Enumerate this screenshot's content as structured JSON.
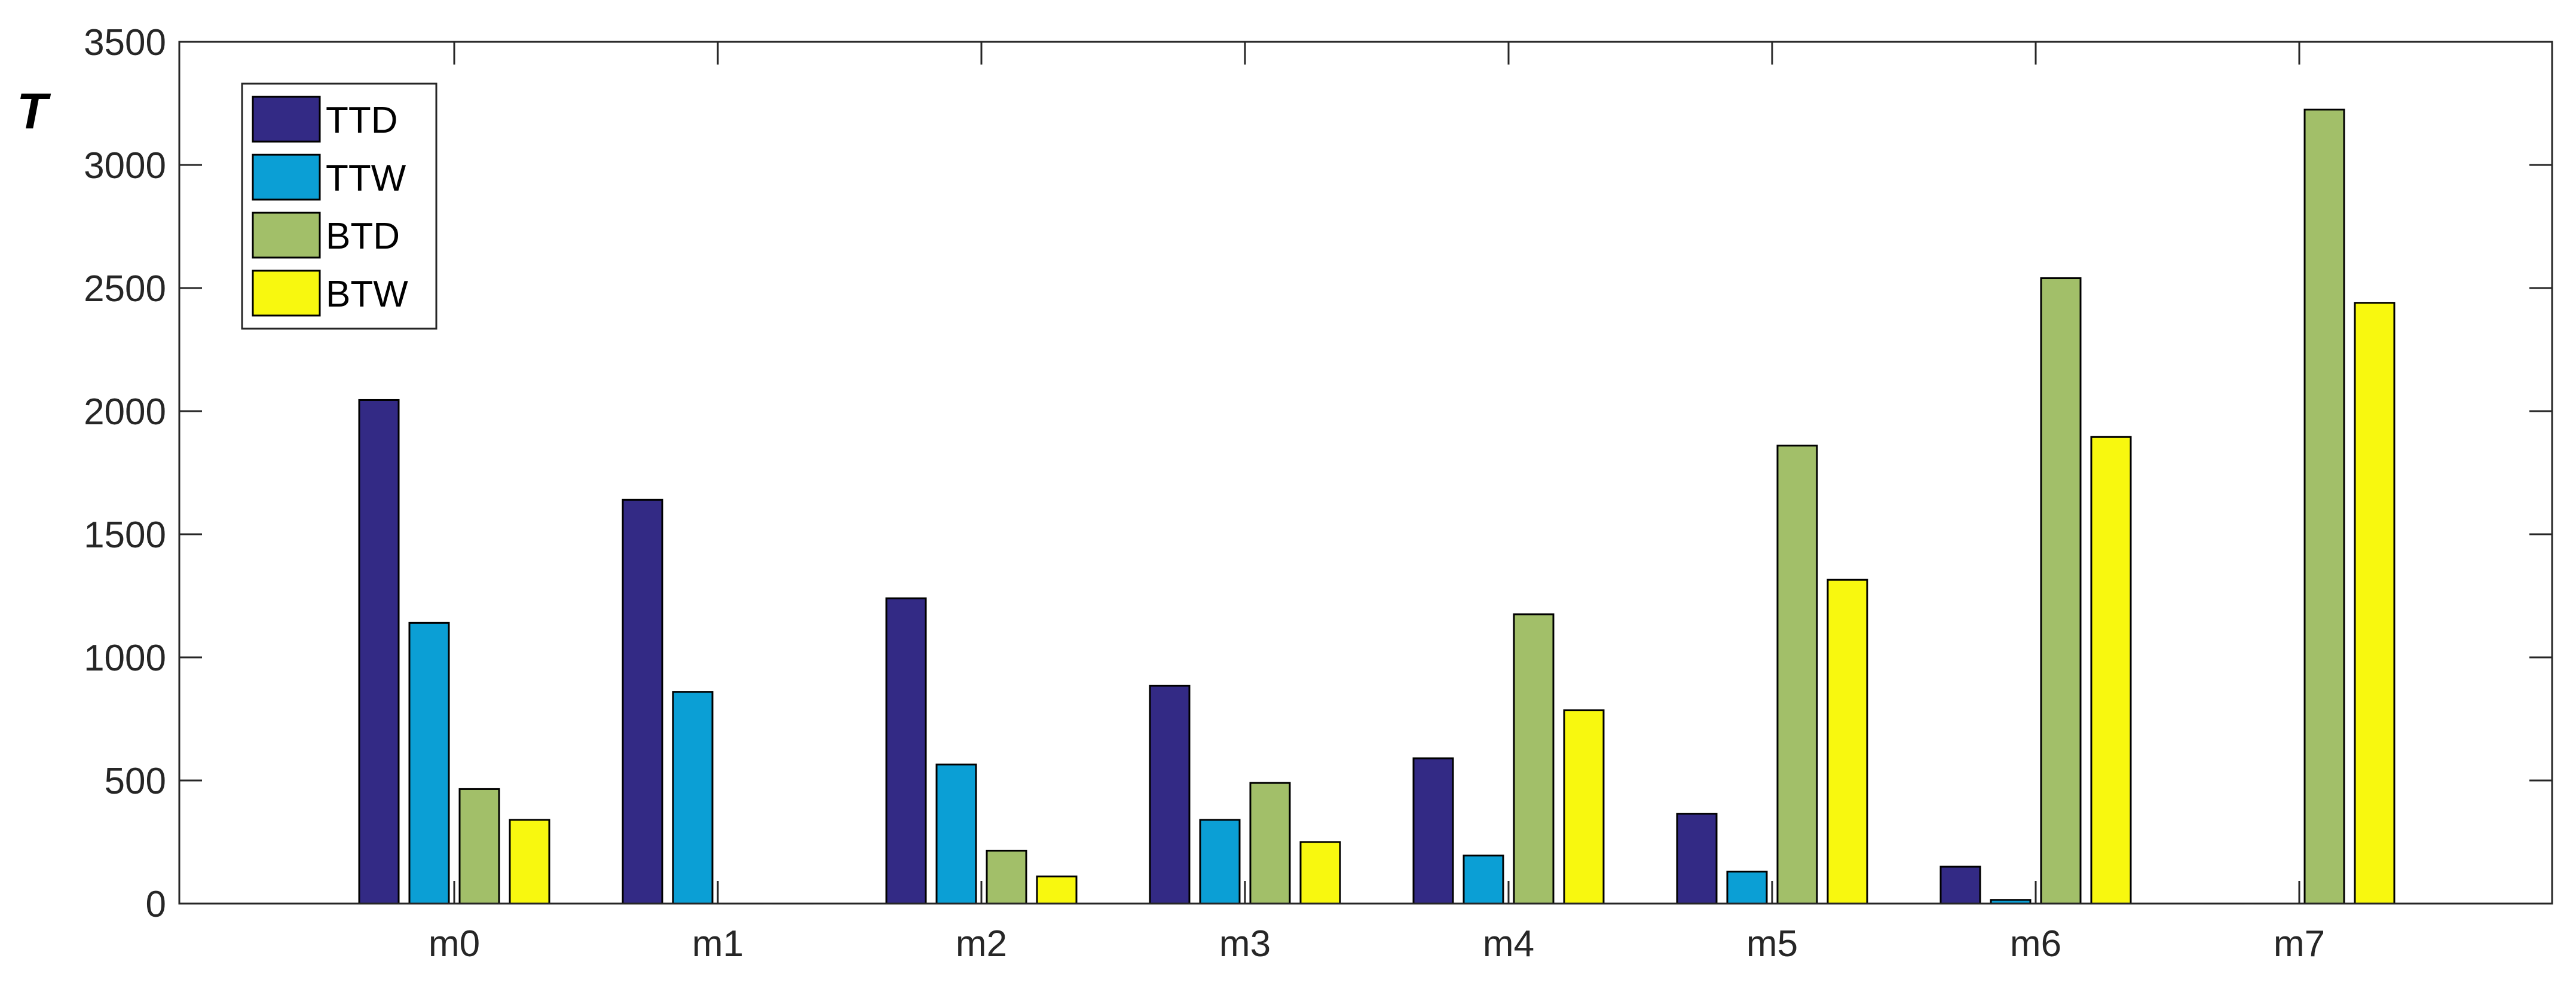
{
  "chart_data": {
    "type": "bar",
    "title": "",
    "xlabel": "",
    "ylabel": "T",
    "categories": [
      "m0",
      "m1",
      "m2",
      "m3",
      "m4",
      "m5",
      "m6",
      "m7"
    ],
    "series": [
      {
        "name": "TTD",
        "color": "#332a85",
        "values": [
          2045,
          1640,
          1240,
          885,
          590,
          365,
          150,
          0
        ]
      },
      {
        "name": "TTW",
        "color": "#0b9fd5",
        "values": [
          1140,
          860,
          565,
          340,
          195,
          130,
          15,
          0
        ]
      },
      {
        "name": "BTD",
        "color": "#a2bf69",
        "values": [
          465,
          0,
          215,
          490,
          1175,
          1860,
          2540,
          3225
        ]
      },
      {
        "name": "BTW",
        "color": "#f8f80f",
        "values": [
          340,
          0,
          110,
          250,
          785,
          1315,
          1895,
          2440
        ]
      }
    ],
    "ylim": [
      0,
      3500
    ],
    "yticks": [
      0,
      500,
      1000,
      1500,
      2000,
      2500,
      3000,
      3500
    ],
    "yticklabels": [
      "0",
      "500",
      "1000",
      "1500",
      "2000",
      "2500",
      "3000",
      "3500"
    ],
    "grid": false,
    "legend_position": "top-left"
  }
}
